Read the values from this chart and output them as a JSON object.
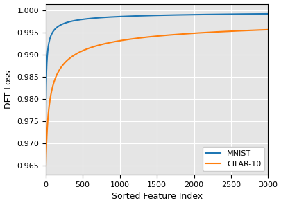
{
  "title": "",
  "xlabel": "Sorted Feature Index",
  "ylabel": "DFT Loss",
  "xlim": [
    0,
    3000
  ],
  "ylim": [
    0.963,
    1.0015
  ],
  "yticks": [
    0.965,
    0.97,
    0.975,
    0.98,
    0.985,
    0.99,
    0.995,
    1.0
  ],
  "xticks": [
    0,
    500,
    1000,
    1500,
    2000,
    2500,
    3000
  ],
  "mnist_color": "#1f77b4",
  "cifar_color": "#ff7f0e",
  "mnist_label": "MNIST",
  "cifar_label": "CIFAR-10",
  "background_color": "#e5e5e5",
  "grid_color": "white",
  "linewidth": 1.5,
  "mnist_drop": 0.0315,
  "mnist_k": 0.3,
  "mnist_alpha": 0.55,
  "cifar_drop": 0.037,
  "cifar_k": 0.055,
  "cifar_alpha": 0.42
}
